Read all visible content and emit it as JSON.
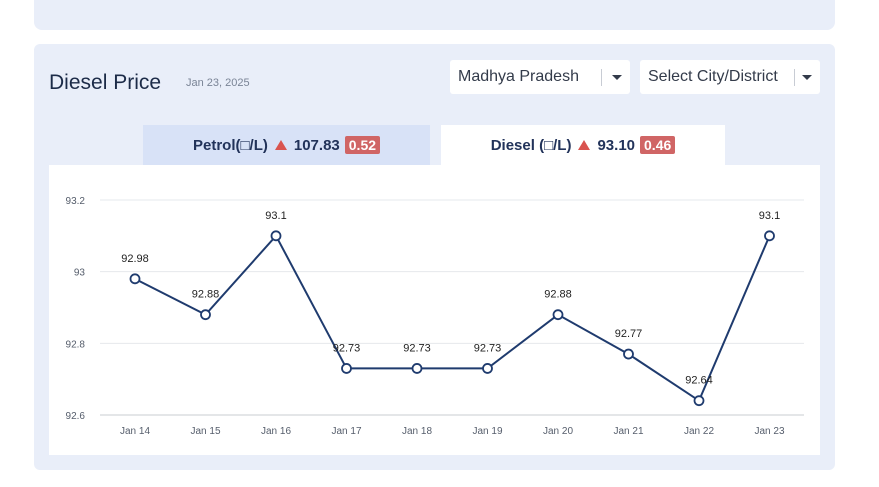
{
  "header": {
    "title": "Diesel Price",
    "date": "Jan 23, 2025"
  },
  "filters": {
    "state": "Madhya Pradesh",
    "city": "Select City/District"
  },
  "tabs": [
    {
      "label": "Petrol(□/L)",
      "price": "107.83",
      "change": "0.52",
      "active": false
    },
    {
      "label": "Diesel (□/L)",
      "price": "93.10",
      "change": "0.46",
      "active": true
    }
  ],
  "colors": {
    "line": "#1f3b6e",
    "change_badge": "#d06565",
    "up_arrow": "#d9534f"
  },
  "chart_data": {
    "type": "line",
    "x": [
      "Jan 14",
      "Jan 15",
      "Jan 16",
      "Jan 17",
      "Jan 18",
      "Jan 19",
      "Jan 20",
      "Jan 21",
      "Jan 22",
      "Jan 23"
    ],
    "values": [
      92.98,
      92.88,
      93.1,
      92.73,
      92.73,
      92.73,
      92.88,
      92.77,
      92.64,
      93.1
    ],
    "data_labels": [
      "92.98",
      "92.88",
      "93.1",
      "92.73",
      "92.73",
      "92.73",
      "92.88",
      "92.77",
      "92.64",
      "93.1"
    ],
    "yticks": [
      93.2,
      93,
      92.8,
      92.6
    ],
    "ytick_labels": [
      "93.2",
      "93",
      "92.8",
      "92.6"
    ],
    "ylim": [
      92.6,
      93.2
    ],
    "grid": true,
    "legend": false
  }
}
